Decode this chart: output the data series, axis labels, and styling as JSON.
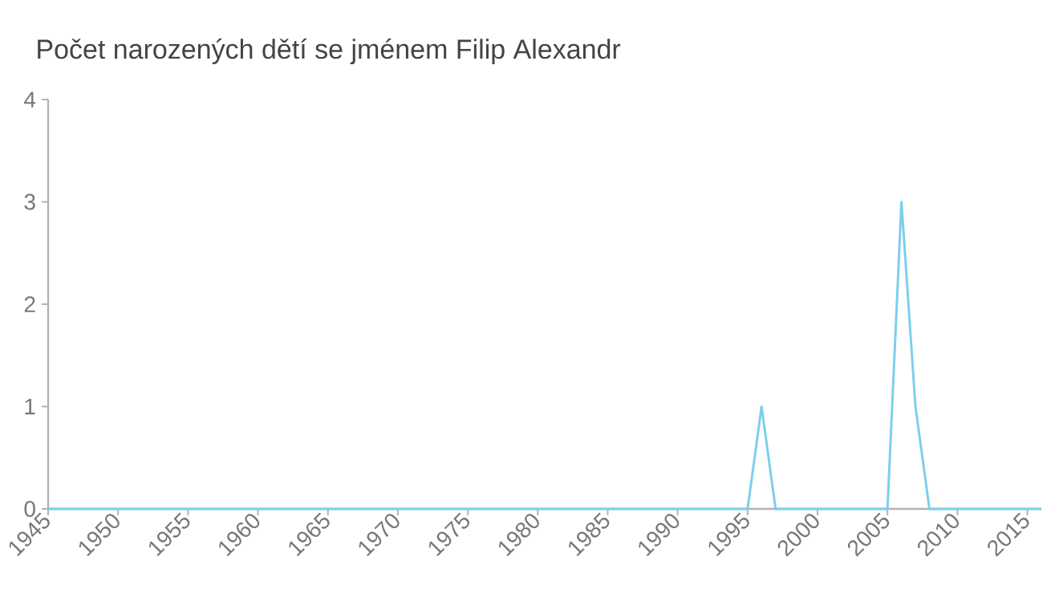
{
  "chart_data": {
    "type": "line",
    "title": "Počet narozených dětí se jménem Filip Alexandr",
    "x": [
      1945,
      1995,
      1996,
      1997,
      2005,
      2006,
      2007,
      2008,
      2016
    ],
    "series": [
      {
        "color": "#7ccfec",
        "values": [
          0,
          0,
          1,
          0,
          0,
          3,
          1,
          0,
          0
        ]
      }
    ],
    "xlim": [
      1945,
      2016
    ],
    "xticks": [
      1945,
      1950,
      1955,
      1960,
      1965,
      1970,
      1975,
      1980,
      1985,
      1990,
      1995,
      2000,
      2005,
      2010,
      2015
    ],
    "ylim": [
      0,
      4
    ],
    "yticks": [
      0,
      1,
      2,
      3,
      4
    ],
    "grid": false,
    "marker": "none",
    "line_style": "solid"
  }
}
